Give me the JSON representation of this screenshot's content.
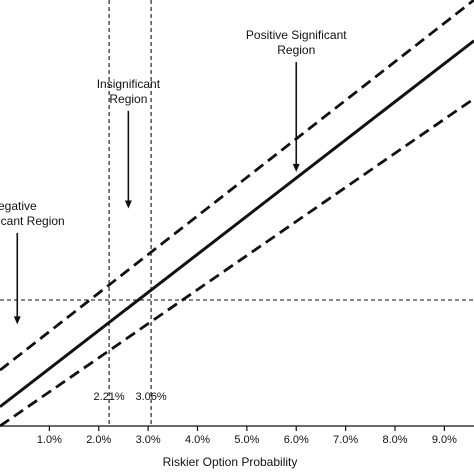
{
  "chart_data": {
    "type": "line",
    "xlabel": "Riskier Option Probability",
    "ylabel": "",
    "xlim": [
      0.0,
      9.6
    ],
    "ylim": [
      -1.0,
      1.0
    ],
    "x_ticks": [
      1,
      2,
      3,
      4,
      5,
      6,
      7,
      8,
      9
    ],
    "x_tick_labels": [
      "1.0%",
      "2.0%",
      "3.0%",
      "4.0%",
      "5.0%",
      "6.0%",
      "7.0%",
      "8.0%",
      "9.0%"
    ],
    "grid": false,
    "series": [
      {
        "line_style": "solid",
        "x": [
          0.0,
          9.6
        ],
        "y": [
          -0.35,
          0.85
        ]
      },
      {
        "line_style": "dashed",
        "x": [
          0.0,
          9.6
        ],
        "y": [
          -0.23,
          1.08
        ]
      },
      {
        "line_style": "dashed",
        "x": [
          0.0,
          9.6
        ],
        "y": [
          -0.46,
          0.66
        ]
      }
    ],
    "reference_lines": {
      "horizontal": [
        {
          "y": 0.0,
          "line_style": "dashed"
        }
      ],
      "vertical": [
        {
          "x": 2.21,
          "label": "2.21%",
          "line_style": "dashed"
        },
        {
          "x": 3.06,
          "label": "3.06%",
          "line_style": "dashed"
        }
      ]
    },
    "annotations": [
      {
        "lines": [
          "Positive Significant",
          "Region"
        ],
        "arrow_x": 6.0,
        "arrow_from_y": 0.78,
        "arrow_to_y": 0.42
      },
      {
        "lines": [
          "Insignificant",
          "Region"
        ],
        "arrow_x": 2.6,
        "arrow_from_y": 0.62,
        "arrow_to_y": 0.3
      },
      {
        "lines": [
          "egative",
          "icant Region"
        ],
        "arrow_x": 0.35,
        "arrow_from_y": 0.22,
        "arrow_to_y": -0.08
      }
    ]
  }
}
